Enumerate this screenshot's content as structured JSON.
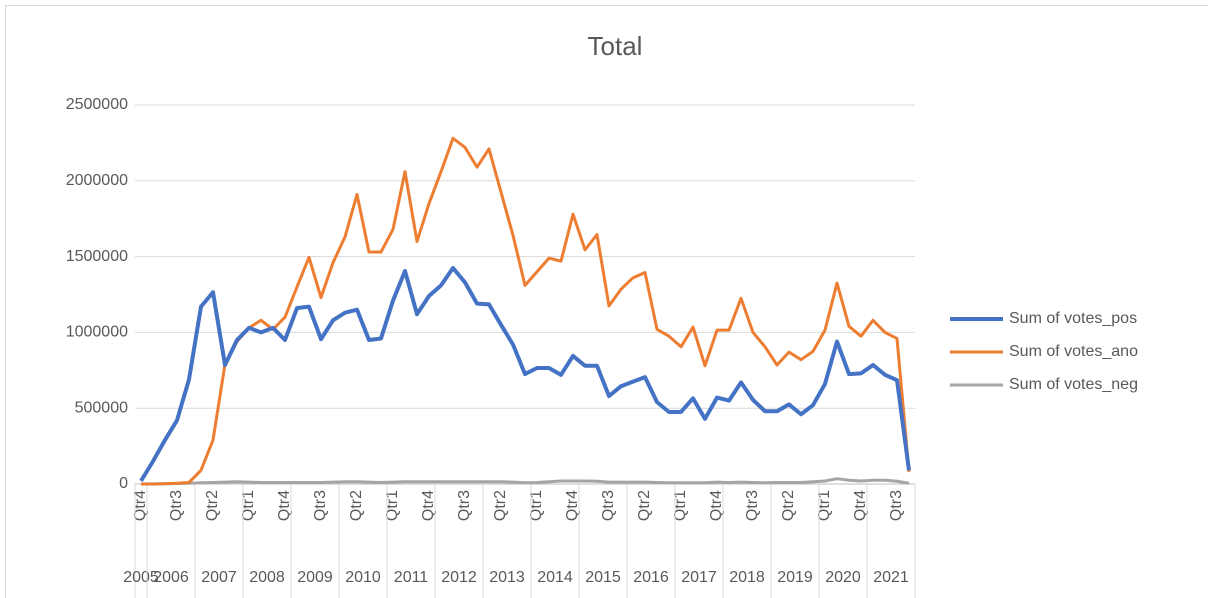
{
  "chart_data": {
    "type": "line",
    "title": "Total",
    "categories": [
      "Qtr4",
      null,
      null,
      "Qtr3",
      null,
      null,
      "Qtr2",
      null,
      null,
      "Qtr1",
      null,
      null,
      "Qtr4",
      null,
      null,
      "Qtr3",
      null,
      null,
      "Qtr2",
      null,
      null,
      "Qtr1",
      null,
      null,
      "Qtr4",
      null,
      null,
      "Qtr3",
      null,
      null,
      "Qtr2",
      null,
      null,
      "Qtr1",
      null,
      null,
      "Qtr4",
      null,
      null,
      "Qtr3",
      null,
      null,
      "Qtr2",
      null,
      null,
      "Qtr1",
      null,
      null,
      "Qtr4",
      null,
      null,
      "Qtr3",
      null,
      null,
      "Qtr2",
      null,
      null,
      "Qtr1",
      null,
      null,
      "Qtr4",
      null,
      null,
      "Qtr3",
      null
    ],
    "years": [
      "2005",
      "2006",
      "2007",
      "2008",
      "2009",
      "2010",
      "2011",
      "2012",
      "2013",
      "2014",
      "2015",
      "2016",
      "2017",
      "2018",
      "2019",
      "2020",
      "2021"
    ],
    "series": [
      {
        "name": "Sum of votes_pos",
        "color": "#4472c4",
        "values": [
          20000,
          150000,
          290000,
          420000,
          690000,
          1170000,
          1265000,
          785000,
          950000,
          1030000,
          1000000,
          1030000,
          950000,
          1160000,
          1170000,
          955000,
          1080000,
          1130000,
          1150000,
          950000,
          960000,
          1210000,
          1405000,
          1120000,
          1240000,
          1310000,
          1425000,
          1330000,
          1190000,
          1185000,
          1050000,
          920000,
          725000,
          765000,
          765000,
          720000,
          845000,
          780000,
          780000,
          580000,
          645000,
          675000,
          705000,
          540000,
          475000,
          475000,
          565000,
          430000,
          570000,
          550000,
          670000,
          555000,
          480000,
          480000,
          525000,
          460000,
          520000,
          660000,
          940000,
          725000,
          730000,
          785000,
          720000,
          685000,
          90000
        ]
      },
      {
        "name": "Sum of votes_ano",
        "color": "#ed7d31",
        "values": [
          0,
          0,
          2000,
          5000,
          10000,
          90000,
          290000,
          790000,
          940000,
          1030000,
          1080000,
          1020000,
          1100000,
          1300000,
          1495000,
          1230000,
          1460000,
          1630000,
          1910000,
          1530000,
          1530000,
          1680000,
          2060000,
          1600000,
          1850000,
          2060000,
          2280000,
          2220000,
          2090000,
          2210000,
          1925000,
          1640000,
          1310000,
          1400000,
          1490000,
          1470000,
          1780000,
          1545000,
          1645000,
          1175000,
          1285000,
          1360000,
          1395000,
          1020000,
          975000,
          905000,
          1035000,
          780000,
          1015000,
          1015000,
          1225000,
          1000000,
          905000,
          785000,
          870000,
          820000,
          875000,
          1015000,
          1325000,
          1040000,
          975000,
          1080000,
          1000000,
          960000,
          80000
        ]
      },
      {
        "name": "Sum of votes_neg",
        "color": "#a5a5a5",
        "values": [
          0,
          1000,
          2000,
          3000,
          5000,
          8000,
          10000,
          12000,
          15000,
          12000,
          10000,
          10000,
          10000,
          10000,
          10000,
          10000,
          12000,
          15000,
          15000,
          12000,
          10000,
          12000,
          15000,
          15000,
          15000,
          15000,
          15000,
          15000,
          15000,
          15000,
          15000,
          12000,
          8000,
          10000,
          15000,
          20000,
          20000,
          20000,
          18000,
          12000,
          12000,
          12000,
          12000,
          10000,
          8000,
          8000,
          8000,
          8000,
          12000,
          10000,
          12000,
          10000,
          8000,
          10000,
          10000,
          10000,
          15000,
          20000,
          35000,
          25000,
          20000,
          25000,
          25000,
          18000,
          5000
        ]
      }
    ],
    "ylim": [
      0,
      2500000
    ],
    "yticks": [
      0,
      500000,
      1000000,
      1500000,
      2000000,
      2500000
    ],
    "grid": true,
    "legend": "right"
  }
}
